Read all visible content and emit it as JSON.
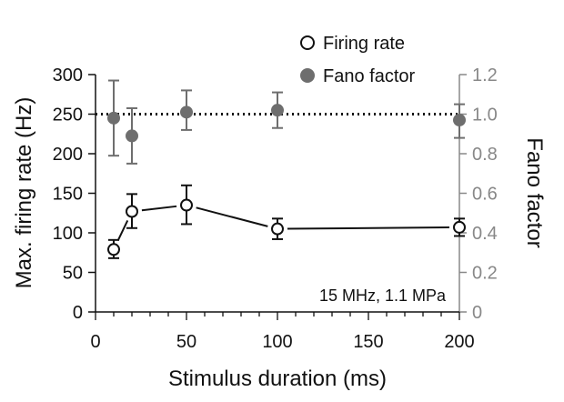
{
  "chart_data": {
    "type": "line",
    "title": "",
    "xlabel": "Stimulus duration (ms)",
    "ylabel": "Max. firing rate (Hz)",
    "y2label": "Fano factor",
    "xlim": [
      0,
      200
    ],
    "ylim": [
      0,
      300
    ],
    "y2lim": [
      0,
      1.2
    ],
    "x_ticks": [
      0,
      50,
      100,
      150,
      200
    ],
    "y_ticks": [
      0,
      50,
      100,
      150,
      200,
      250,
      300
    ],
    "y2_ticks": [
      0,
      0.2,
      0.4,
      0.6,
      0.8,
      1.0,
      1.2
    ],
    "x_tick_labels": [
      "0",
      "50",
      "100",
      "150",
      "200"
    ],
    "y_tick_labels": [
      "0",
      "50",
      "100",
      "150",
      "200",
      "250",
      "300"
    ],
    "y2_tick_labels": [
      "0",
      "0.2",
      "0.4",
      "0.6",
      "0.8",
      "1.0",
      "1.2"
    ],
    "annotation": "15 MHz, 1.1 MPa",
    "reference_line": {
      "axis": "y2",
      "value": 1.0,
      "style": "dotted"
    },
    "legend": [
      "Firing rate",
      "Fano factor"
    ],
    "legend_position": "top-right",
    "colors": {
      "firing": "#111111",
      "fano": "#6e6e6e",
      "axis_right": "#888888"
    },
    "series": [
      {
        "name": "Firing rate",
        "axis": "left",
        "marker": "open-circle",
        "x": [
          10,
          20,
          50,
          100,
          200
        ],
        "values": [
          79,
          127,
          135,
          105,
          107
        ],
        "err_low": [
          68,
          106,
          111,
          92,
          96
        ],
        "err_high": [
          91,
          149,
          160,
          118,
          118
        ],
        "segments": [
          [
            0,
            1
          ],
          [
            1,
            2
          ],
          [
            2,
            3
          ],
          [
            3,
            4
          ]
        ]
      },
      {
        "name": "Fano factor",
        "axis": "right",
        "marker": "filled-circle",
        "x": [
          10,
          20,
          50,
          100,
          200
        ],
        "values": [
          0.98,
          0.89,
          1.01,
          1.02,
          0.97
        ],
        "err_low": [
          0.79,
          0.75,
          0.92,
          0.93,
          0.88
        ],
        "err_high": [
          1.17,
          1.03,
          1.12,
          1.11,
          1.05
        ]
      }
    ]
  }
}
